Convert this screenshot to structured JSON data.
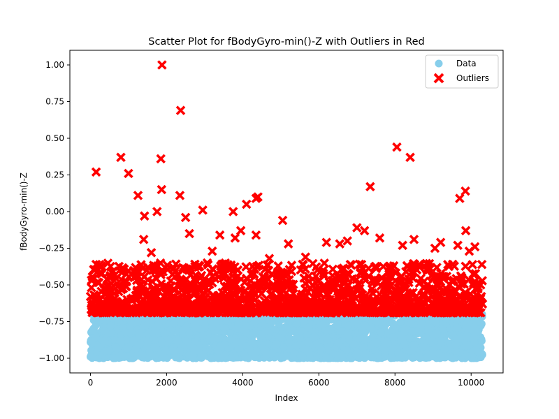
{
  "chart_data": {
    "type": "scatter",
    "title": "Scatter Plot for fBodyGyro-min()-Z with Outliers in Red",
    "xlabel": "Index",
    "ylabel": "fBodyGyro-min()-Z",
    "xlim": [
      -540,
      10840
    ],
    "ylim": [
      -1.1,
      1.1
    ],
    "x_ticks": [
      0,
      2000,
      4000,
      6000,
      8000,
      10000
    ],
    "x_tick_labels": [
      "0",
      "2000",
      "4000",
      "6000",
      "8000",
      "10000"
    ],
    "y_ticks": [
      -1.0,
      -0.75,
      -0.5,
      -0.25,
      0.0,
      0.25,
      0.5,
      0.75,
      1.0
    ],
    "y_tick_labels": [
      "−1.00",
      "−0.75",
      "−0.50",
      "−0.25",
      "0.00",
      "0.25",
      "0.50",
      "0.75",
      "1.00"
    ],
    "grid": false,
    "legend_position": "top-right",
    "series": [
      {
        "name": "Data",
        "marker": "circle",
        "color": "#87ceeb",
        "x_range": [
          0,
          10299
        ],
        "y_range": [
          -1.0,
          -0.69
        ],
        "points": [
          [
            0,
            -0.99
          ],
          [
            120,
            -0.86
          ],
          [
            250,
            -0.74
          ],
          [
            400,
            -0.95
          ],
          [
            600,
            -0.71
          ],
          [
            800,
            -0.88
          ],
          [
            1000,
            -0.73
          ],
          [
            1300,
            -0.9
          ],
          [
            1600,
            -0.72
          ],
          [
            1900,
            -0.97
          ],
          [
            2200,
            -0.76
          ],
          [
            2600,
            -0.83
          ],
          [
            3000,
            -0.7
          ],
          [
            3400,
            -0.92
          ],
          [
            3700,
            -0.71
          ],
          [
            4100,
            -0.78
          ],
          [
            4600,
            -0.94
          ],
          [
            5000,
            -0.73
          ],
          [
            5500,
            -0.86
          ],
          [
            6000,
            -0.72
          ],
          [
            6500,
            -0.98
          ],
          [
            7000,
            -0.75
          ],
          [
            7500,
            -0.89
          ],
          [
            8000,
            -0.71
          ],
          [
            8500,
            -0.93
          ],
          [
            9000,
            -0.74
          ],
          [
            9500,
            -0.85
          ],
          [
            9900,
            -0.72
          ],
          [
            10200,
            -0.96
          ],
          [
            10290,
            -0.7
          ]
        ]
      },
      {
        "name": "Outliers",
        "marker": "x",
        "color": "#ff0000",
        "points": [
          [
            150,
            0.27
          ],
          [
            800,
            0.37
          ],
          [
            1000,
            0.26
          ],
          [
            1250,
            0.11
          ],
          [
            1420,
            -0.03
          ],
          [
            1750,
            0.0
          ],
          [
            1850,
            0.36
          ],
          [
            1870,
            0.15
          ],
          [
            1880,
            1.0
          ],
          [
            2350,
            0.11
          ],
          [
            2370,
            0.69
          ],
          [
            2500,
            -0.04
          ],
          [
            2950,
            0.01
          ],
          [
            3750,
            0.0
          ],
          [
            4100,
            0.05
          ],
          [
            4350,
            0.09
          ],
          [
            4400,
            0.1
          ],
          [
            5050,
            -0.06
          ],
          [
            6200,
            -0.21
          ],
          [
            7000,
            -0.11
          ],
          [
            7350,
            0.17
          ],
          [
            7600,
            -0.18
          ],
          [
            8050,
            0.44
          ],
          [
            8400,
            0.37
          ],
          [
            9700,
            0.09
          ],
          [
            9850,
            0.14
          ],
          [
            9860,
            -0.13
          ],
          [
            150,
            -0.36
          ],
          [
            500,
            -0.45
          ],
          [
            1400,
            -0.19
          ],
          [
            1600,
            -0.28
          ],
          [
            2600,
            -0.15
          ],
          [
            3200,
            -0.27
          ],
          [
            3400,
            -0.16
          ],
          [
            3800,
            -0.18
          ],
          [
            3950,
            -0.13
          ],
          [
            4350,
            -0.16
          ],
          [
            4700,
            -0.32
          ],
          [
            5200,
            -0.22
          ],
          [
            5650,
            -0.31
          ],
          [
            6550,
            -0.22
          ],
          [
            6750,
            -0.2
          ],
          [
            7200,
            -0.13
          ],
          [
            8200,
            -0.23
          ],
          [
            8500,
            -0.19
          ],
          [
            9050,
            -0.25
          ],
          [
            9200,
            -0.21
          ],
          [
            9650,
            -0.23
          ],
          [
            9950,
            -0.27
          ],
          [
            10100,
            -0.24
          ],
          [
            10250,
            -0.5
          ],
          [
            10300,
            -0.63
          ]
        ],
        "dense_band": {
          "x_range": [
            0,
            10300
          ],
          "y_range": [
            -0.69,
            -0.35
          ]
        }
      }
    ]
  }
}
